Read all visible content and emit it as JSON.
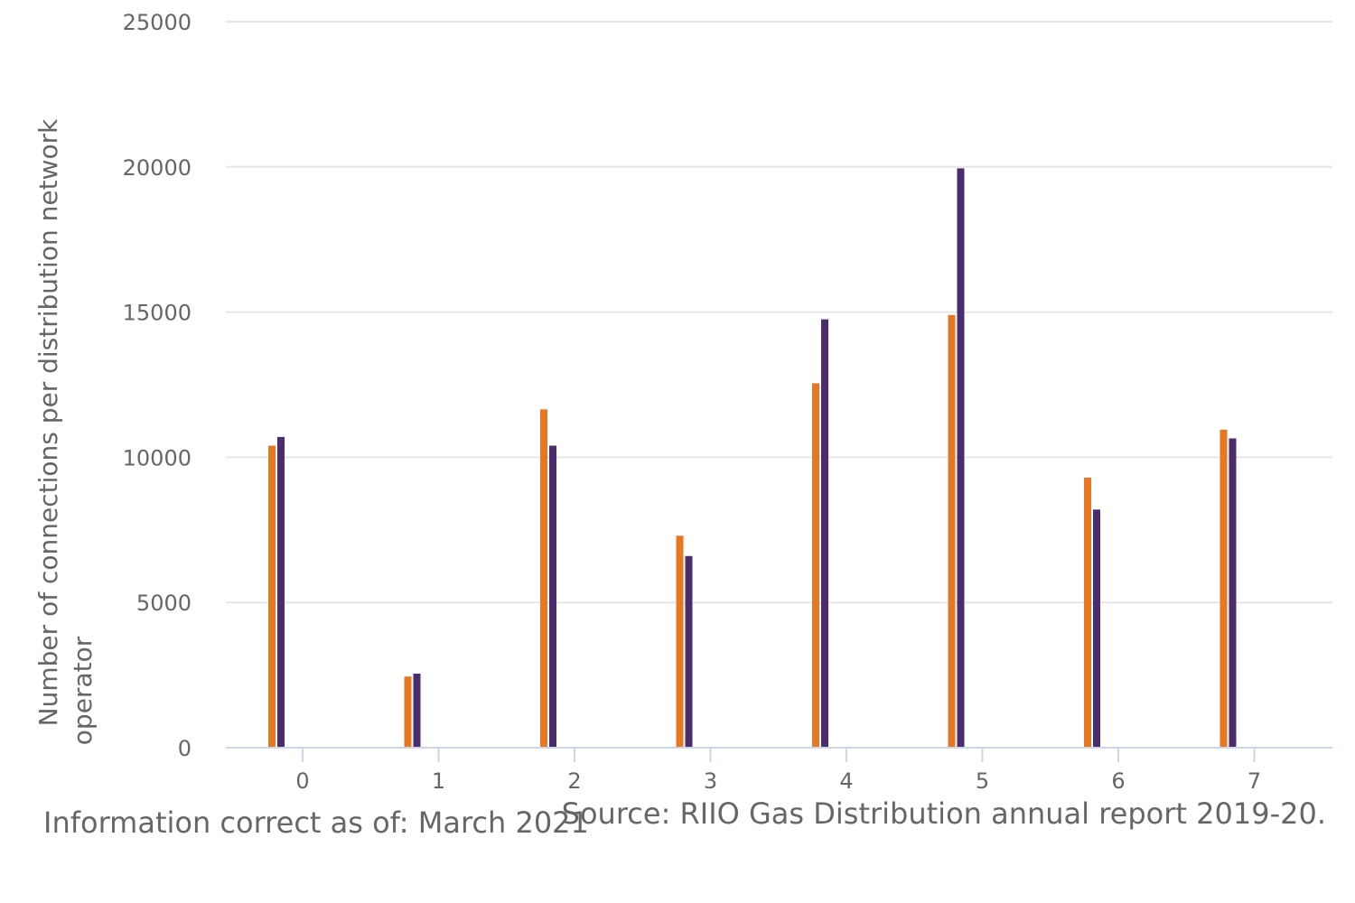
{
  "chart_data": {
    "type": "bar",
    "categories": [
      "0",
      "1",
      "2",
      "3",
      "4",
      "5",
      "6",
      "7"
    ],
    "series": [
      {
        "color": "#E87722",
        "values": [
          10400,
          2450,
          11650,
          7300,
          12550,
          14900,
          9300,
          10950
        ]
      },
      {
        "color": "#4A2C6F",
        "values": [
          10700,
          2550,
          10400,
          6600,
          14750,
          19950,
          8200,
          10650
        ]
      }
    ],
    "title": "",
    "xlabel": "",
    "ylabel": [
      "Number of connections per distribution network",
      "operator"
    ],
    "ylim": [
      0,
      25000
    ],
    "yticks": [
      "0",
      "5000",
      "10000",
      "15000",
      "20000",
      "25000"
    ],
    "grid": true,
    "legend": "none"
  },
  "footer": {
    "left": "Information correct as of: March 2021",
    "right": "Source: RIIO Gas Distribution annual report 2019-20."
  },
  "colors": {
    "grid": "#e6e6e6",
    "axis": "#ccd6eb",
    "text": "#666666"
  }
}
